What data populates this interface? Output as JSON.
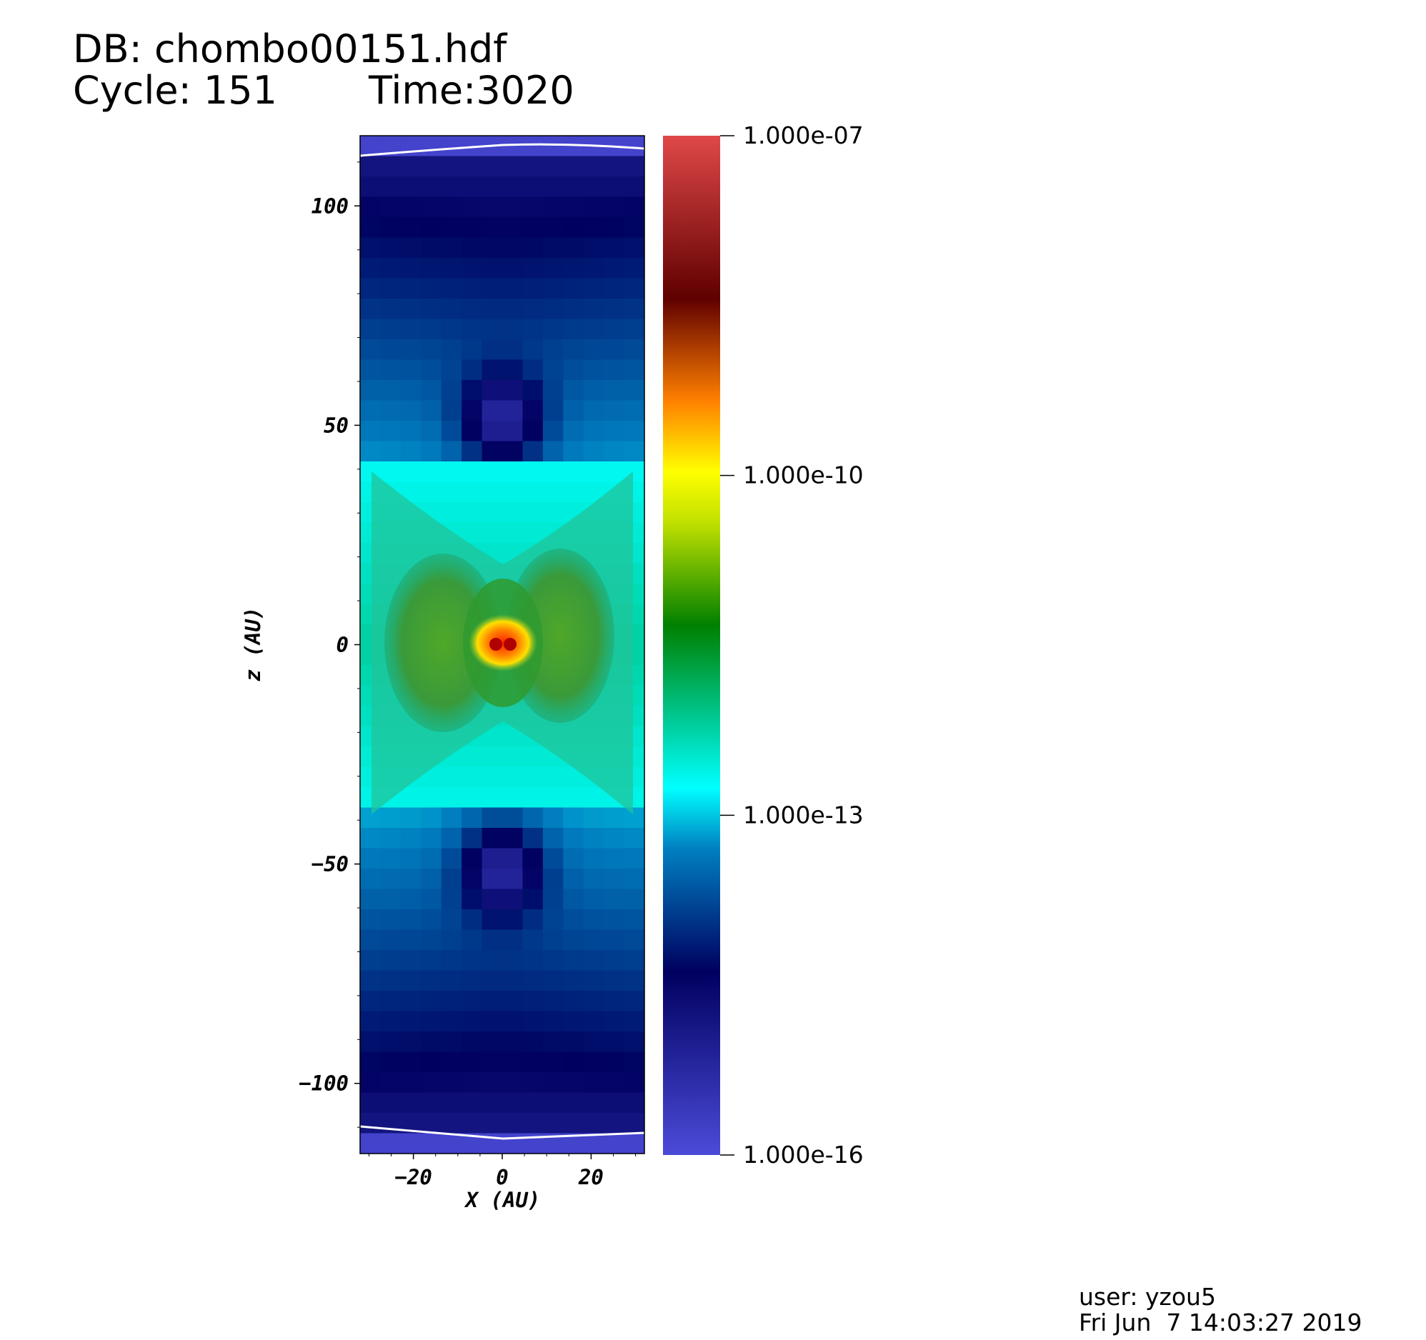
{
  "header": {
    "db_line": "DB: chombo00151.hdf",
    "cycle_line": "Cycle: 151",
    "time_line": "Time:3020"
  },
  "footer": {
    "user": "user: yzou5",
    "date": "Fri Jun  7 14:03:27 2019"
  },
  "chart_data": {
    "type": "heatmap",
    "xlabel": "X (AU)",
    "ylabel": "z (AU)",
    "xlim": [
      -32,
      32
    ],
    "ylim": [
      -116,
      116
    ],
    "x_ticks": [
      -20,
      0,
      20
    ],
    "x_tick_labels": [
      "−20",
      "0",
      "20"
    ],
    "y_ticks": [
      100,
      50,
      0,
      -50,
      -100
    ],
    "y_tick_labels": [
      "100",
      "50",
      "0",
      "−50",
      "−100"
    ],
    "colorbar": {
      "scale": "log",
      "min": 1e-16,
      "max": 1e-07,
      "tick_labels": [
        "1.000e-07",
        "1.000e-10",
        "1.000e-13",
        "1.000e-16"
      ],
      "tick_values": [
        1e-07,
        1e-10,
        1e-13,
        1e-16
      ],
      "colormap": [
        {
          "pos": 0.0,
          "color": "#4b4bd9"
        },
        {
          "pos": 0.18,
          "color": "#000060"
        },
        {
          "pos": 0.3,
          "color": "#007fc0"
        },
        {
          "pos": 0.36,
          "color": "#00ffff"
        },
        {
          "pos": 0.44,
          "color": "#00c080"
        },
        {
          "pos": 0.52,
          "color": "#008000"
        },
        {
          "pos": 0.62,
          "color": "#c0e000"
        },
        {
          "pos": 0.67,
          "color": "#ffff00"
        },
        {
          "pos": 0.74,
          "color": "#ff8000"
        },
        {
          "pos": 0.84,
          "color": "#600000"
        },
        {
          "pos": 1.0,
          "color": "#e04848"
        }
      ]
    }
  }
}
